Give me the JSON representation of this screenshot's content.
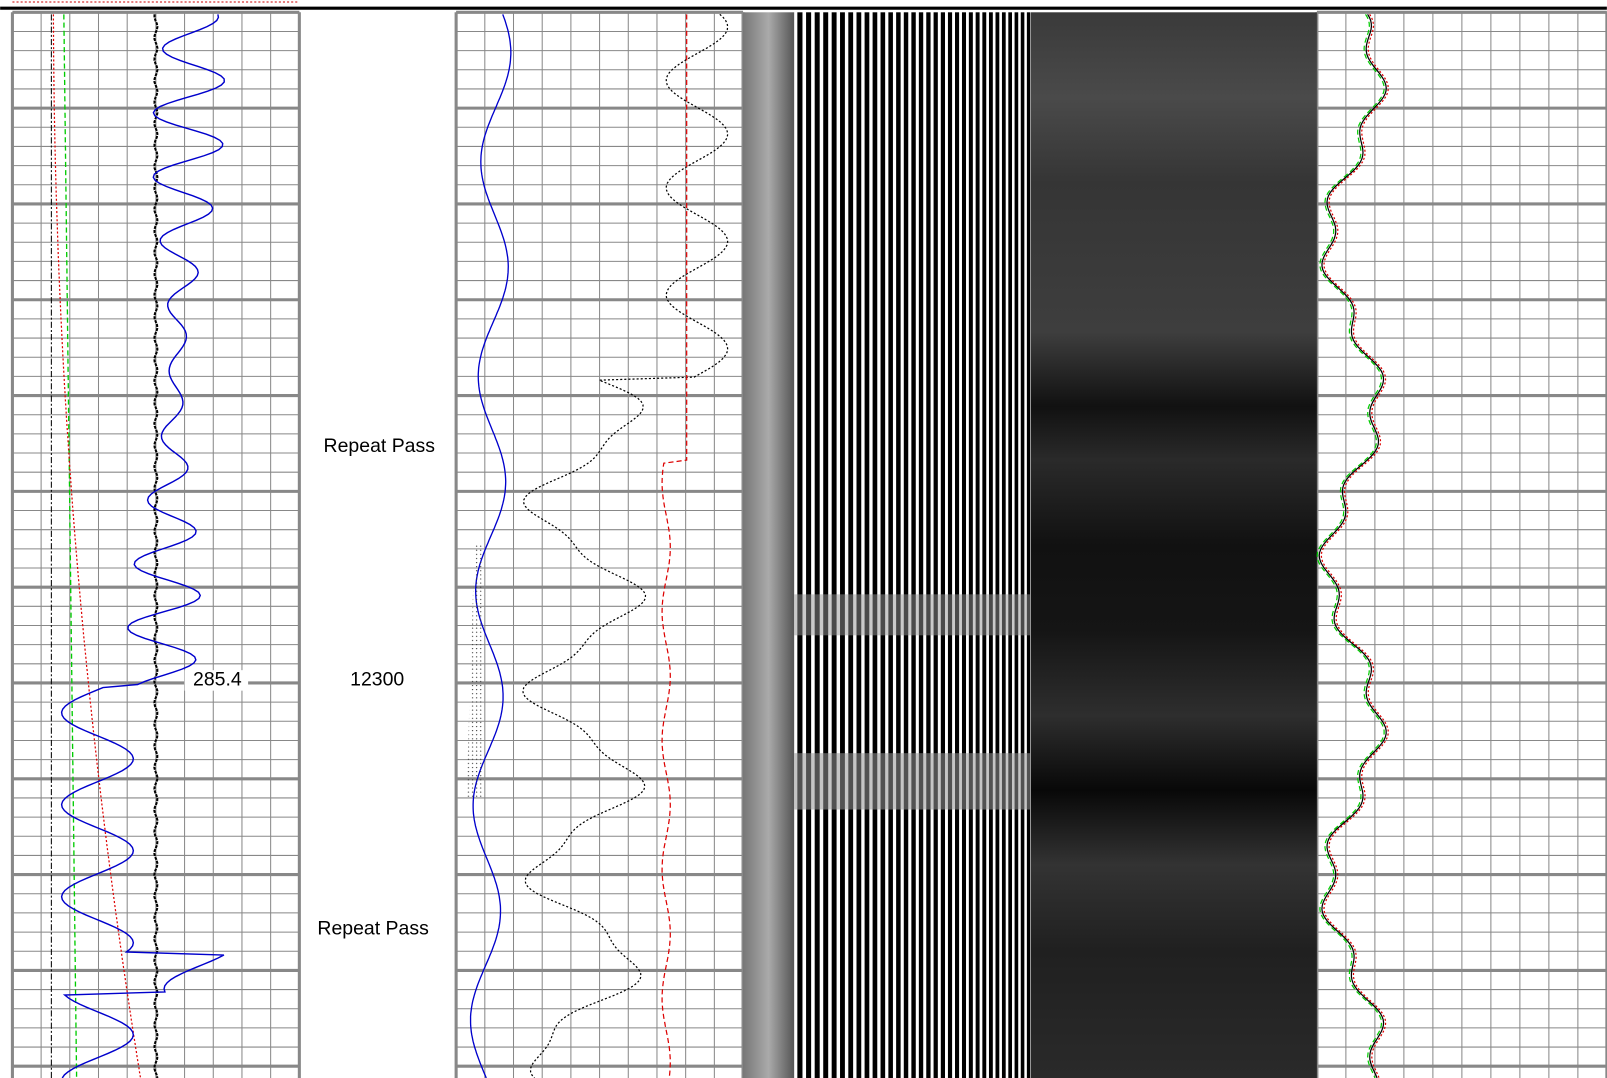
{
  "annotations": {
    "repeat_pass_upper": "Repeat Pass",
    "curve_value": "285.4",
    "depth": "12300",
    "repeat_pass_lower": "Repeat Pass"
  }
}
